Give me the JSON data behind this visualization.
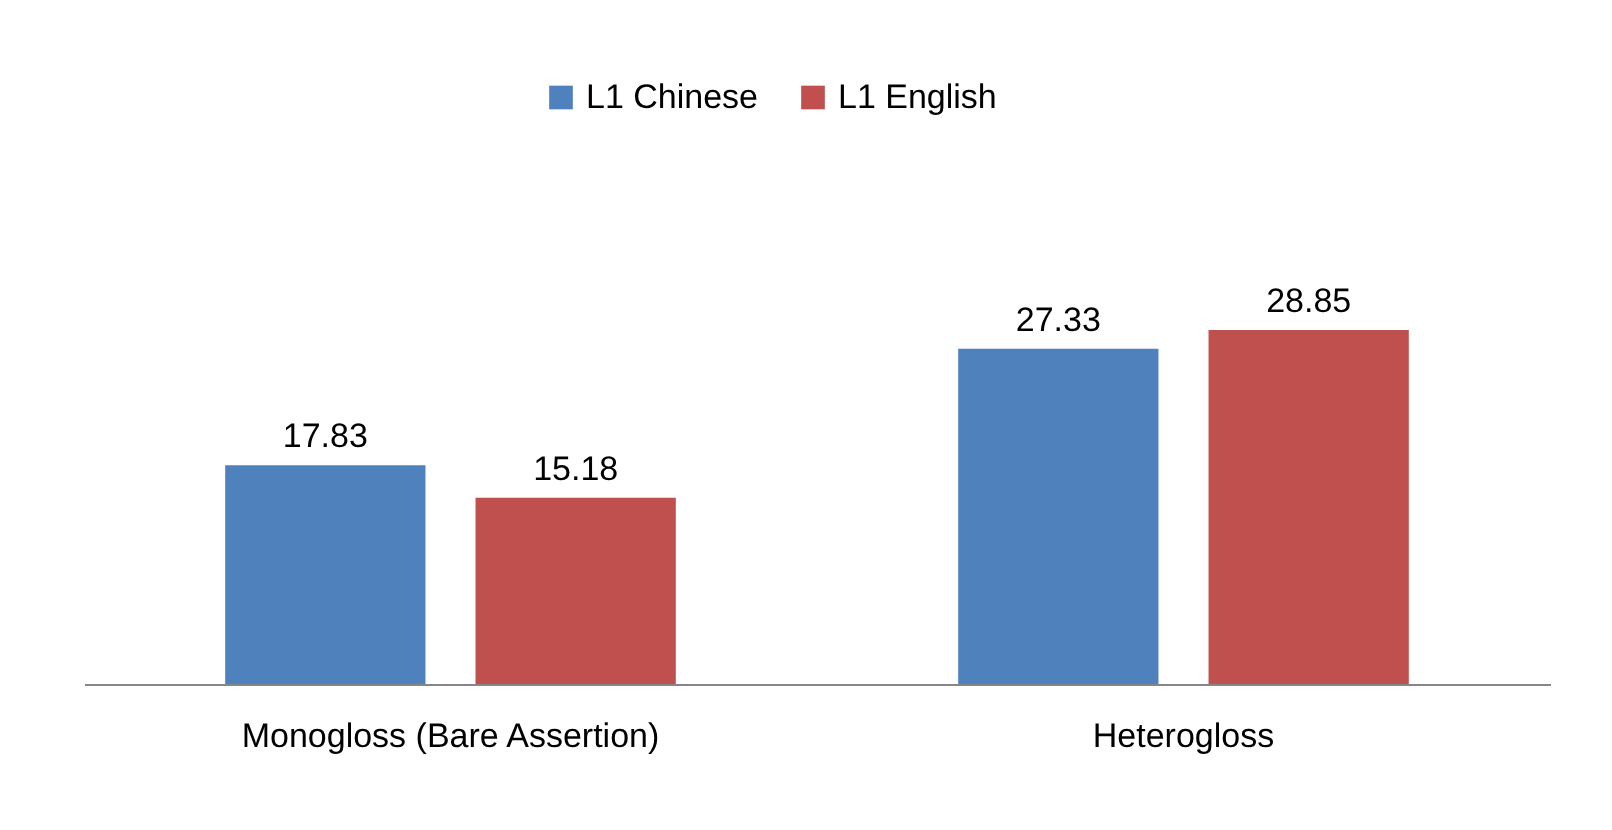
{
  "chart_data": {
    "type": "bar",
    "categories": [
      "Monogloss (Bare Assertion)",
      "Heterogloss"
    ],
    "series": [
      {
        "name": "L1 Chinese",
        "color": "#4f81bd",
        "values": [
          17.83,
          27.33
        ]
      },
      {
        "name": "L1 English",
        "color": "#c0504d",
        "values": [
          15.18,
          28.85
        ]
      }
    ],
    "data_labels": true,
    "legend": "top",
    "grid": false
  }
}
